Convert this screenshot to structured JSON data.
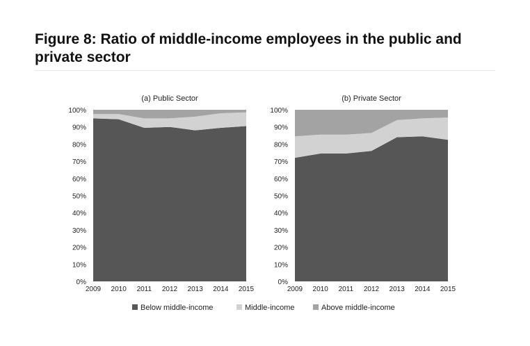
{
  "figure": {
    "title": "Figure 8: Ratio of middle-income employees in the public and private sector"
  },
  "colors": {
    "below": "#565656",
    "middle": "#d2d2d2",
    "above": "#a3a3a3"
  },
  "chart_data": [
    {
      "type": "area",
      "stacked": true,
      "title": "(a) Public Sector",
      "x": [
        "2009",
        "2010",
        "2011",
        "2012",
        "2013",
        "2014",
        "2015"
      ],
      "ylim": [
        0,
        100
      ],
      "yticks": [
        "0%",
        "10%",
        "20%",
        "30%",
        "40%",
        "50%",
        "60%",
        "70%",
        "80%",
        "90%",
        "100%"
      ],
      "series": [
        {
          "name": "Below middle-income",
          "values": [
            95,
            94.5,
            89.5,
            90,
            88,
            89.5,
            90.5
          ]
        },
        {
          "name": "Middle-income",
          "values": [
            2.5,
            3,
            5.5,
            5,
            8,
            8.5,
            8
          ]
        },
        {
          "name": "Above middle-income",
          "values": [
            2.5,
            2.5,
            5,
            5,
            4,
            2,
            1.5
          ]
        }
      ]
    },
    {
      "type": "area",
      "stacked": true,
      "title": "(b) Private Sector",
      "x": [
        "2009",
        "2010",
        "2011",
        "2012",
        "2013",
        "2014",
        "2015"
      ],
      "ylim": [
        0,
        100
      ],
      "yticks": [
        "0%",
        "10%",
        "20%",
        "30%",
        "40%",
        "50%",
        "60%",
        "70%",
        "80%",
        "90%",
        "100%"
      ],
      "series": [
        {
          "name": "Below middle-income",
          "values": [
            72,
            74.5,
            74.5,
            76,
            84,
            84.5,
            82.5
          ]
        },
        {
          "name": "Middle-income",
          "values": [
            12.5,
            11,
            11,
            10.5,
            10,
            10.5,
            13
          ]
        },
        {
          "name": "Above middle-income",
          "values": [
            15.5,
            14.5,
            14.5,
            13.5,
            6,
            5,
            4.5
          ]
        }
      ]
    }
  ],
  "legend": {
    "position": "bottom",
    "items": [
      "Below middle-income",
      "Middle-income",
      "Above middle-income"
    ]
  }
}
